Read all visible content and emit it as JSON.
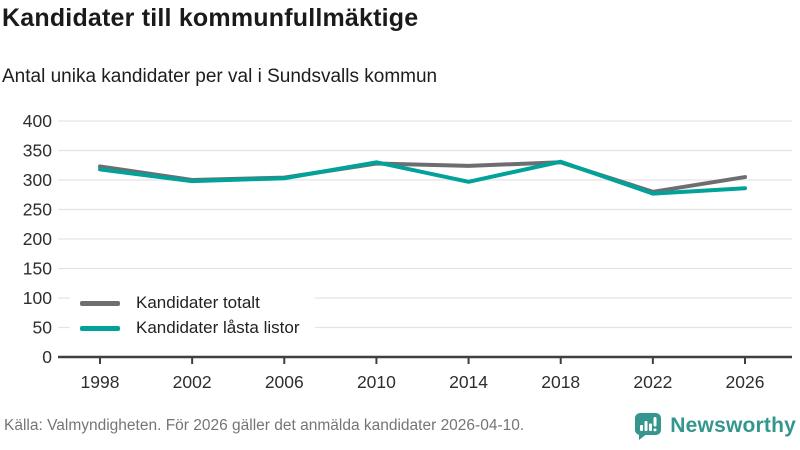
{
  "title": "Kandidater till kommunfullmäktige",
  "subtitle": "Antal unika kandidater per val i Sundsvalls kommun",
  "footer": {
    "source": "Källa: Valmyndigheten. För 2026 gäller det anmälda kandidater 2026-04-10."
  },
  "branding": {
    "name": "Newsworthy",
    "color": "#35968e",
    "icon": "newsworthy-bubble-chart-icon"
  },
  "colors": {
    "grid": "#e3e3e3",
    "axis": "#3f3f3f",
    "tick_label": "#2e2e2e",
    "series_total": "#6d6e71",
    "series_locked": "#00a29a"
  },
  "chart_data": {
    "type": "line",
    "title": "Kandidater till kommunfullmäktige",
    "subtitle": "Antal unika kandidater per val i Sundsvalls kommun",
    "x": [
      1998,
      2002,
      2006,
      2010,
      2014,
      2018,
      2022,
      2026
    ],
    "series": [
      {
        "name": "Kandidater totalt",
        "color": "#6d6e71",
        "values": [
          323,
          300,
          304,
          328,
          324,
          330,
          280,
          305
        ]
      },
      {
        "name": "Kandidater låsta listor",
        "color": "#00a29a",
        "values": [
          318,
          298,
          303,
          330,
          297,
          331,
          277,
          286
        ]
      }
    ],
    "xlabel": "",
    "ylabel": "",
    "ylim": [
      0,
      400
    ],
    "yticks": [
      0,
      50,
      100,
      150,
      200,
      250,
      300,
      350,
      400
    ],
    "grid": true,
    "legend_position": "inside-bottom-left"
  }
}
